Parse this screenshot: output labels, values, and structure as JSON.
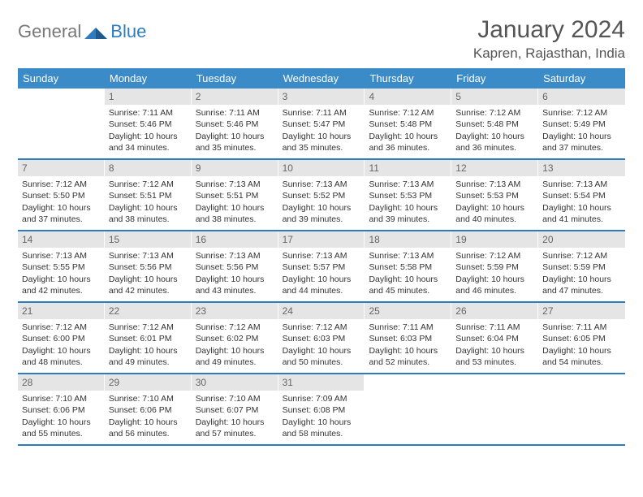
{
  "logo": {
    "part1": "General",
    "part2": "Blue"
  },
  "title": "January 2024",
  "location": "Kapren, Rajasthan, India",
  "dayHeaders": [
    "Sunday",
    "Monday",
    "Tuesday",
    "Wednesday",
    "Thursday",
    "Friday",
    "Saturday"
  ],
  "colors": {
    "headerBlue": "#3b8bc8",
    "borderBlue": "#2d7cc0",
    "dayNumBg": "#e5e5e5",
    "dayNumText": "#666666",
    "bodyText": "#333333",
    "titleText": "#555555"
  },
  "weeks": [
    [
      {
        "n": "",
        "sr": "",
        "ss": "",
        "dl": ""
      },
      {
        "n": "1",
        "sr": "Sunrise: 7:11 AM",
        "ss": "Sunset: 5:46 PM",
        "dl": "Daylight: 10 hours and 34 minutes."
      },
      {
        "n": "2",
        "sr": "Sunrise: 7:11 AM",
        "ss": "Sunset: 5:46 PM",
        "dl": "Daylight: 10 hours and 35 minutes."
      },
      {
        "n": "3",
        "sr": "Sunrise: 7:11 AM",
        "ss": "Sunset: 5:47 PM",
        "dl": "Daylight: 10 hours and 35 minutes."
      },
      {
        "n": "4",
        "sr": "Sunrise: 7:12 AM",
        "ss": "Sunset: 5:48 PM",
        "dl": "Daylight: 10 hours and 36 minutes."
      },
      {
        "n": "5",
        "sr": "Sunrise: 7:12 AM",
        "ss": "Sunset: 5:48 PM",
        "dl": "Daylight: 10 hours and 36 minutes."
      },
      {
        "n": "6",
        "sr": "Sunrise: 7:12 AM",
        "ss": "Sunset: 5:49 PM",
        "dl": "Daylight: 10 hours and 37 minutes."
      }
    ],
    [
      {
        "n": "7",
        "sr": "Sunrise: 7:12 AM",
        "ss": "Sunset: 5:50 PM",
        "dl": "Daylight: 10 hours and 37 minutes."
      },
      {
        "n": "8",
        "sr": "Sunrise: 7:12 AM",
        "ss": "Sunset: 5:51 PM",
        "dl": "Daylight: 10 hours and 38 minutes."
      },
      {
        "n": "9",
        "sr": "Sunrise: 7:13 AM",
        "ss": "Sunset: 5:51 PM",
        "dl": "Daylight: 10 hours and 38 minutes."
      },
      {
        "n": "10",
        "sr": "Sunrise: 7:13 AM",
        "ss": "Sunset: 5:52 PM",
        "dl": "Daylight: 10 hours and 39 minutes."
      },
      {
        "n": "11",
        "sr": "Sunrise: 7:13 AM",
        "ss": "Sunset: 5:53 PM",
        "dl": "Daylight: 10 hours and 39 minutes."
      },
      {
        "n": "12",
        "sr": "Sunrise: 7:13 AM",
        "ss": "Sunset: 5:53 PM",
        "dl": "Daylight: 10 hours and 40 minutes."
      },
      {
        "n": "13",
        "sr": "Sunrise: 7:13 AM",
        "ss": "Sunset: 5:54 PM",
        "dl": "Daylight: 10 hours and 41 minutes."
      }
    ],
    [
      {
        "n": "14",
        "sr": "Sunrise: 7:13 AM",
        "ss": "Sunset: 5:55 PM",
        "dl": "Daylight: 10 hours and 42 minutes."
      },
      {
        "n": "15",
        "sr": "Sunrise: 7:13 AM",
        "ss": "Sunset: 5:56 PM",
        "dl": "Daylight: 10 hours and 42 minutes."
      },
      {
        "n": "16",
        "sr": "Sunrise: 7:13 AM",
        "ss": "Sunset: 5:56 PM",
        "dl": "Daylight: 10 hours and 43 minutes."
      },
      {
        "n": "17",
        "sr": "Sunrise: 7:13 AM",
        "ss": "Sunset: 5:57 PM",
        "dl": "Daylight: 10 hours and 44 minutes."
      },
      {
        "n": "18",
        "sr": "Sunrise: 7:13 AM",
        "ss": "Sunset: 5:58 PM",
        "dl": "Daylight: 10 hours and 45 minutes."
      },
      {
        "n": "19",
        "sr": "Sunrise: 7:12 AM",
        "ss": "Sunset: 5:59 PM",
        "dl": "Daylight: 10 hours and 46 minutes."
      },
      {
        "n": "20",
        "sr": "Sunrise: 7:12 AM",
        "ss": "Sunset: 5:59 PM",
        "dl": "Daylight: 10 hours and 47 minutes."
      }
    ],
    [
      {
        "n": "21",
        "sr": "Sunrise: 7:12 AM",
        "ss": "Sunset: 6:00 PM",
        "dl": "Daylight: 10 hours and 48 minutes."
      },
      {
        "n": "22",
        "sr": "Sunrise: 7:12 AM",
        "ss": "Sunset: 6:01 PM",
        "dl": "Daylight: 10 hours and 49 minutes."
      },
      {
        "n": "23",
        "sr": "Sunrise: 7:12 AM",
        "ss": "Sunset: 6:02 PM",
        "dl": "Daylight: 10 hours and 49 minutes."
      },
      {
        "n": "24",
        "sr": "Sunrise: 7:12 AM",
        "ss": "Sunset: 6:03 PM",
        "dl": "Daylight: 10 hours and 50 minutes."
      },
      {
        "n": "25",
        "sr": "Sunrise: 7:11 AM",
        "ss": "Sunset: 6:03 PM",
        "dl": "Daylight: 10 hours and 52 minutes."
      },
      {
        "n": "26",
        "sr": "Sunrise: 7:11 AM",
        "ss": "Sunset: 6:04 PM",
        "dl": "Daylight: 10 hours and 53 minutes."
      },
      {
        "n": "27",
        "sr": "Sunrise: 7:11 AM",
        "ss": "Sunset: 6:05 PM",
        "dl": "Daylight: 10 hours and 54 minutes."
      }
    ],
    [
      {
        "n": "28",
        "sr": "Sunrise: 7:10 AM",
        "ss": "Sunset: 6:06 PM",
        "dl": "Daylight: 10 hours and 55 minutes."
      },
      {
        "n": "29",
        "sr": "Sunrise: 7:10 AM",
        "ss": "Sunset: 6:06 PM",
        "dl": "Daylight: 10 hours and 56 minutes."
      },
      {
        "n": "30",
        "sr": "Sunrise: 7:10 AM",
        "ss": "Sunset: 6:07 PM",
        "dl": "Daylight: 10 hours and 57 minutes."
      },
      {
        "n": "31",
        "sr": "Sunrise: 7:09 AM",
        "ss": "Sunset: 6:08 PM",
        "dl": "Daylight: 10 hours and 58 minutes."
      },
      {
        "n": "",
        "sr": "",
        "ss": "",
        "dl": ""
      },
      {
        "n": "",
        "sr": "",
        "ss": "",
        "dl": ""
      },
      {
        "n": "",
        "sr": "",
        "ss": "",
        "dl": ""
      }
    ]
  ]
}
